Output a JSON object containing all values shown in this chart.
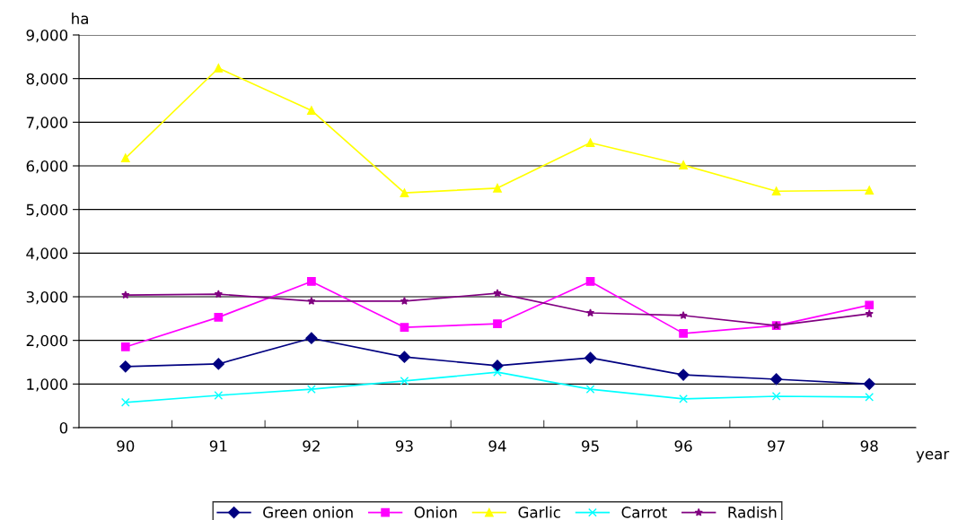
{
  "chart_data": {
    "type": "line",
    "xlabel": "year",
    "ylabel": "ha",
    "categories": [
      "90",
      "91",
      "92",
      "93",
      "94",
      "95",
      "96",
      "97",
      "98"
    ],
    "ylim": [
      0,
      9000
    ],
    "yticks": [
      {
        "value": 0,
        "label": "0"
      },
      {
        "value": 1000,
        "label": "1,000"
      },
      {
        "value": 2000,
        "label": "2,000"
      },
      {
        "value": 3000,
        "label": "3,000"
      },
      {
        "value": 4000,
        "label": "4,000"
      },
      {
        "value": 5000,
        "label": "5,000"
      },
      {
        "value": 6000,
        "label": "6,000"
      },
      {
        "value": 7000,
        "label": "7,000"
      },
      {
        "value": 8000,
        "label": "8,000"
      },
      {
        "value": 9000,
        "label": "9,000"
      }
    ],
    "grid": "y",
    "legend": "bottom",
    "series": [
      {
        "name": "Green onion",
        "color": "#000080",
        "marker": "diamond",
        "values": [
          1400,
          1460,
          2050,
          1620,
          1420,
          1600,
          1210,
          1110,
          1000
        ]
      },
      {
        "name": "Onion",
        "color": "#ff00ff",
        "marker": "square",
        "values": [
          1850,
          2530,
          3350,
          2300,
          2380,
          3350,
          2160,
          2340,
          2810
        ]
      },
      {
        "name": "Garlic",
        "color": "#ffff00",
        "marker": "triangle",
        "values": [
          6180,
          8240,
          7270,
          5380,
          5490,
          6530,
          6020,
          5420,
          5440
        ]
      },
      {
        "name": "Carrot",
        "color": "#00ffff",
        "marker": "cross",
        "values": [
          580,
          740,
          880,
          1070,
          1270,
          880,
          660,
          720,
          700
        ]
      },
      {
        "name": "Radish",
        "color": "#800080",
        "marker": "star",
        "values": [
          3040,
          3060,
          2900,
          2900,
          3080,
          2630,
          2570,
          2340,
          2610
        ]
      }
    ]
  }
}
